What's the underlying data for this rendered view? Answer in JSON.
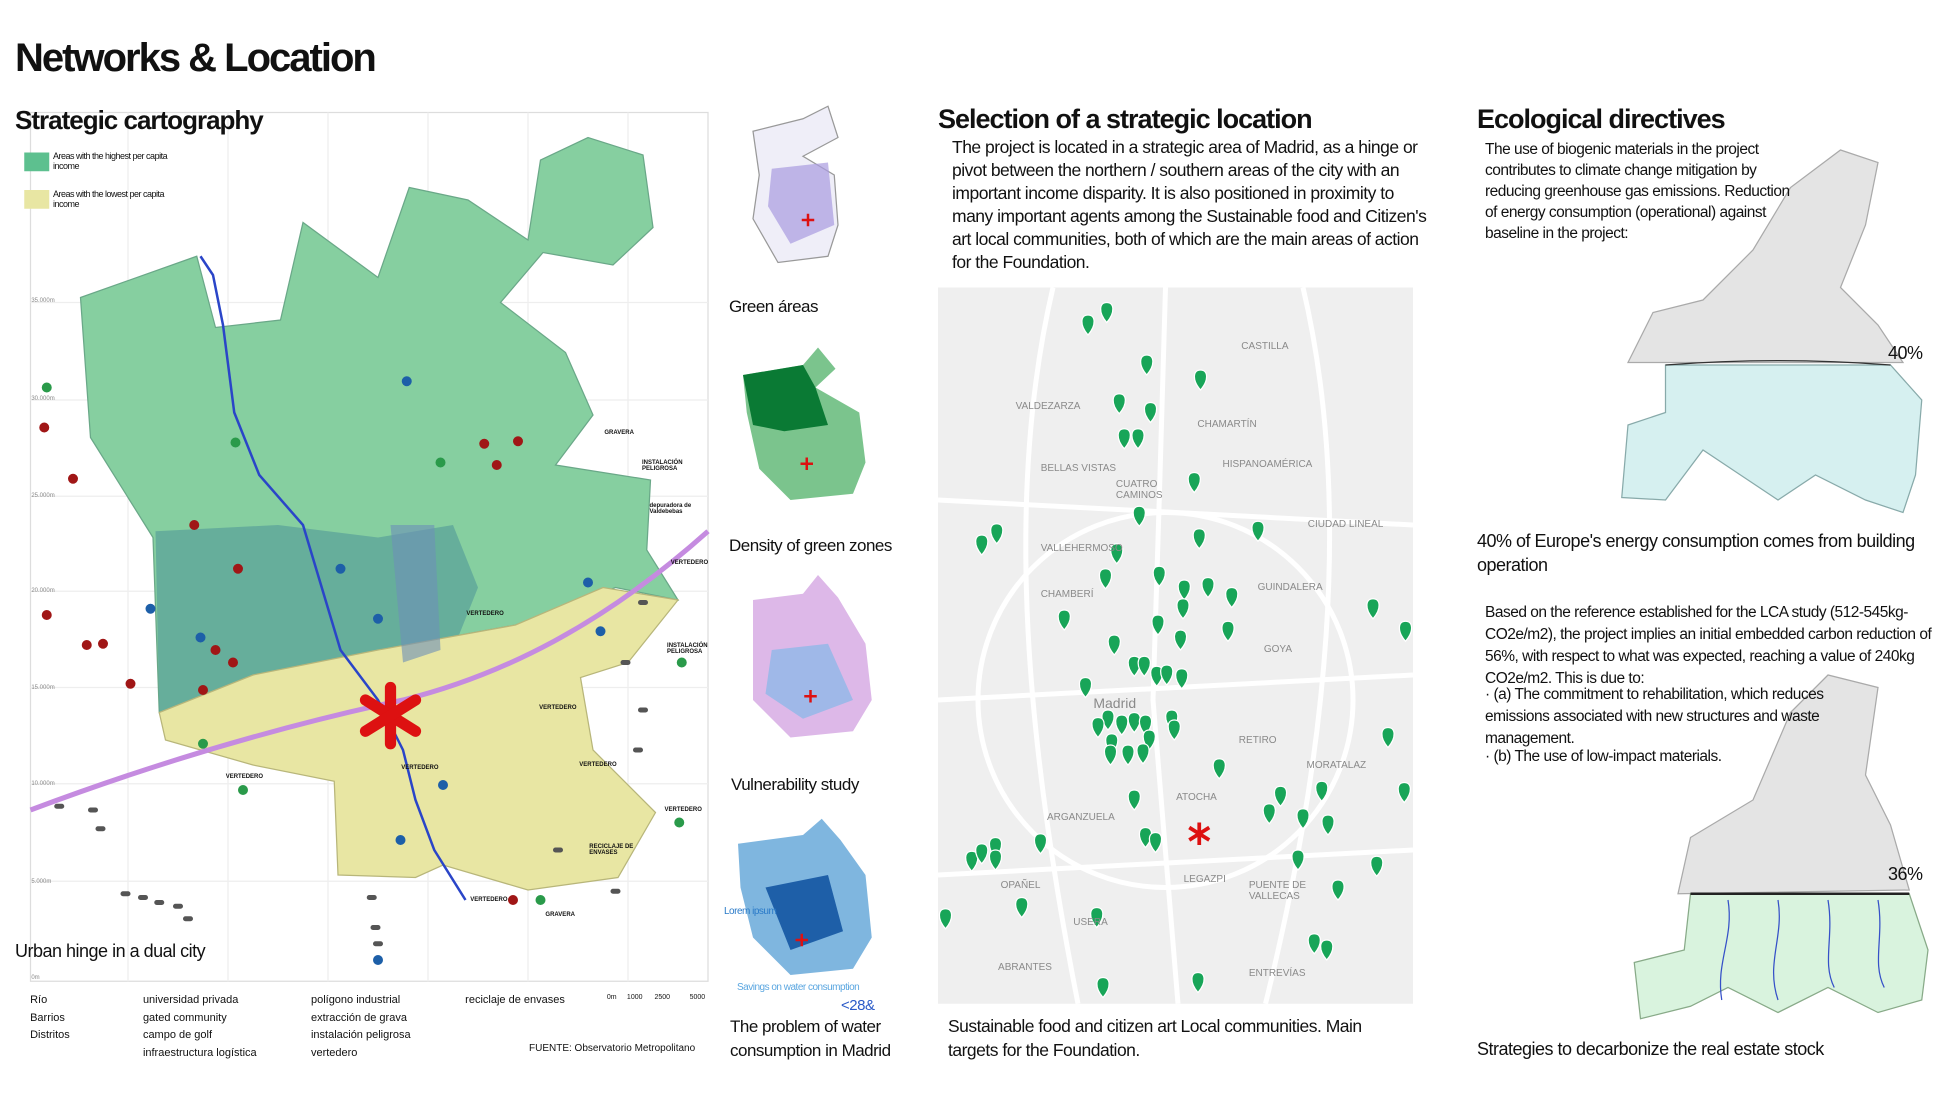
{
  "header": {
    "title": "Networks & Location"
  },
  "cartography": {
    "title": "Strategic cartography",
    "legend": [
      "Areas with the highest per capita income",
      "Areas with the lowest per capita income"
    ],
    "caption": "Urban hinge in a dual city",
    "grid_labels": [
      "35.000m",
      "30.000m",
      "25.000m",
      "20.000m",
      "15.000m",
      "10.000m",
      "5.000m",
      "0m"
    ],
    "map_labels": [
      "GRAVERA",
      "INSTALACIÓN PELIGROSA",
      "depuradora de Valdebebas",
      "VERTEDERO",
      "VERTEDERO",
      "INSTALACIÓN PELIGROSA",
      "VERTEDERO",
      "VERTEDERO",
      "VERTEDERO",
      "VERTEDERO",
      "VERTEDERO",
      "RECICLAJE DE ENVASES",
      "VERTEDERO",
      "GRAVERA"
    ],
    "key": [
      "Río",
      "Barrios",
      "Distritos",
      "universidad privada",
      "gated community",
      "campo de golf",
      "infraestructura logística",
      "polígono industrial",
      "extracción de grava",
      "instalación peligrosa",
      "vertedero",
      "reciclaje de envases"
    ],
    "scale": [
      "0m",
      "1000",
      "2500",
      "5000"
    ],
    "source": "FUENTE: Observatorio Metropolitano"
  },
  "studies": [
    {
      "caption": "Green áreas"
    },
    {
      "caption": "Density of green zones"
    },
    {
      "caption": "Vulnerability study"
    },
    {
      "caption": "The problem of water consumption in Madrid",
      "labels": [
        "Lorem ipsum",
        "Savings on water consumption",
        "<28&"
      ]
    }
  ],
  "location": {
    "title": "Selection of a strategic location",
    "text": "The project is located in a strategic area of Madrid, as a hinge or pivot between the northern / southern areas of the city with an important income disparity. It is also positioned in proximity to many important agents among the Sustainable food and Citizen's art local communities, both of which are the main areas of action for the Foundation.",
    "map_labels": [
      "CASTILLA",
      "VALDEZARZA",
      "CHAMARTÍN",
      "BELLAS VISTAS",
      "CUATRO CAMINOS",
      "HISPANOAMÉRICA",
      "CIUDAD LINEAL",
      "VALLEHERMOSO",
      "CHAMBERÍ",
      "GUINDALERA",
      "GOYA",
      "Madrid",
      "RETIRO",
      "MORATALAZ",
      "ATOCHA",
      "ARGANZUELA",
      "PUENTE DE VALLECAS",
      "USERA",
      "ENTREVÍAS",
      "LEGAZPI",
      "ABRANTES",
      "OPAÑEL"
    ],
    "caption": "Sustainable food and citizen art Local communities. Main targets for the Foundation."
  },
  "ecology": {
    "title": "Ecological directives",
    "text": "The use of biogenic materials in the project contributes to climate change mitigation by reducing greenhouse gas emissions. Reduction of energy consumption (operational) against baseline in the project:",
    "figure1": "40%",
    "caption1": "40% of Europe's energy consumption comes from building operation",
    "text2": "Based on the reference established for the LCA study (512-545kg-CO2e/m2), the project implies an initial embedded carbon reduction of 56%, with respect to what was expected, reaching a value of 240kg CO2e/m2. This is due to:",
    "items": [
      "· (a) The commitment to rehabilitation, which reduces emissions associated with new structures and waste management.",
      "· (b) The use of low-impact materials."
    ],
    "figure2": "36%",
    "caption2": "Strategies to decarbonize the real estate stock"
  }
}
